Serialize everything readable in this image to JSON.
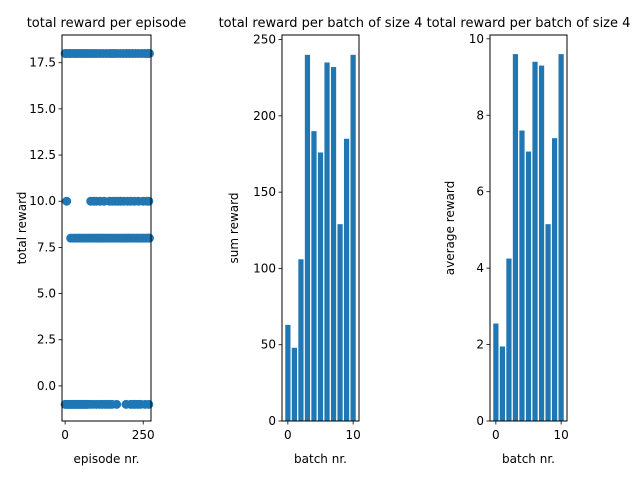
{
  "colors": {
    "series": "#1f77b4",
    "axis": "#000000",
    "background": "#ffffff"
  },
  "chart_data": [
    {
      "type": "scatter",
      "title": "total reward per episode",
      "xlabel": "episode nr.",
      "ylabel": "total reward",
      "xlim": [
        -10,
        275
      ],
      "ylim": [
        -1.9,
        19.0
      ],
      "xticks": [
        0,
        250
      ],
      "xtick_labels": [
        "0",
        "250"
      ],
      "yticks": [
        0.0,
        2.5,
        5.0,
        7.5,
        10.0,
        12.5,
        15.0,
        17.5
      ],
      "ytick_labels": [
        "0.0",
        "2.5",
        "5.0",
        "7.5",
        "10.0",
        "12.5",
        "15.0",
        "17.5"
      ],
      "grid": false,
      "points": [
        [
          0,
          18
        ],
        [
          5,
          18
        ],
        [
          12,
          18
        ],
        [
          18,
          18
        ],
        [
          26,
          18
        ],
        [
          33,
          18
        ],
        [
          40,
          18
        ],
        [
          48,
          18
        ],
        [
          55,
          18
        ],
        [
          62,
          18
        ],
        [
          70,
          18
        ],
        [
          78,
          18
        ],
        [
          86,
          18
        ],
        [
          94,
          18
        ],
        [
          102,
          18
        ],
        [
          112,
          18
        ],
        [
          122,
          18
        ],
        [
          132,
          18
        ],
        [
          142,
          18
        ],
        [
          150,
          18
        ],
        [
          158,
          18
        ],
        [
          166,
          18
        ],
        [
          176,
          18
        ],
        [
          186,
          18
        ],
        [
          196,
          18
        ],
        [
          206,
          18
        ],
        [
          216,
          18
        ],
        [
          226,
          18
        ],
        [
          236,
          18
        ],
        [
          246,
          18
        ],
        [
          256,
          18
        ],
        [
          264,
          18
        ],
        [
          270,
          18
        ],
        [
          5,
          10
        ],
        [
          82,
          10
        ],
        [
          92,
          10
        ],
        [
          100,
          10
        ],
        [
          112,
          10
        ],
        [
          125,
          10
        ],
        [
          142,
          10
        ],
        [
          152,
          10
        ],
        [
          162,
          10
        ],
        [
          170,
          10
        ],
        [
          178,
          10
        ],
        [
          188,
          10
        ],
        [
          200,
          10
        ],
        [
          210,
          10
        ],
        [
          222,
          10
        ],
        [
          235,
          10
        ],
        [
          250,
          10
        ],
        [
          262,
          10
        ],
        [
          268,
          10
        ],
        [
          18,
          8
        ],
        [
          28,
          8
        ],
        [
          36,
          8
        ],
        [
          44,
          8
        ],
        [
          52,
          8
        ],
        [
          60,
          8
        ],
        [
          68,
          8
        ],
        [
          76,
          8
        ],
        [
          84,
          8
        ],
        [
          92,
          8
        ],
        [
          100,
          8
        ],
        [
          108,
          8
        ],
        [
          116,
          8
        ],
        [
          124,
          8
        ],
        [
          132,
          8
        ],
        [
          140,
          8
        ],
        [
          148,
          8
        ],
        [
          156,
          8
        ],
        [
          164,
          8
        ],
        [
          172,
          8
        ],
        [
          180,
          8
        ],
        [
          188,
          8
        ],
        [
          196,
          8
        ],
        [
          204,
          8
        ],
        [
          212,
          8
        ],
        [
          220,
          8
        ],
        [
          228,
          8
        ],
        [
          236,
          8
        ],
        [
          244,
          8
        ],
        [
          252,
          8
        ],
        [
          260,
          8
        ],
        [
          266,
          8
        ],
        [
          270,
          8
        ],
        [
          0,
          -1
        ],
        [
          4,
          -1
        ],
        [
          8,
          -1
        ],
        [
          12,
          -1
        ],
        [
          16,
          -1
        ],
        [
          20,
          -1
        ],
        [
          24,
          -1
        ],
        [
          28,
          -1
        ],
        [
          32,
          -1
        ],
        [
          36,
          -1
        ],
        [
          40,
          -1
        ],
        [
          44,
          -1
        ],
        [
          48,
          -1
        ],
        [
          52,
          -1
        ],
        [
          56,
          -1
        ],
        [
          60,
          -1
        ],
        [
          64,
          -1
        ],
        [
          68,
          -1
        ],
        [
          72,
          -1
        ],
        [
          80,
          -1
        ],
        [
          90,
          -1
        ],
        [
          100,
          -1
        ],
        [
          110,
          -1
        ],
        [
          118,
          -1
        ],
        [
          126,
          -1
        ],
        [
          134,
          -1
        ],
        [
          142,
          -1
        ],
        [
          150,
          -1
        ],
        [
          165,
          -1
        ],
        [
          195,
          -1
        ],
        [
          210,
          -1
        ],
        [
          218,
          -1
        ],
        [
          226,
          -1
        ],
        [
          234,
          -1
        ],
        [
          242,
          -1
        ],
        [
          256,
          -1
        ],
        [
          268,
          -1
        ]
      ]
    },
    {
      "type": "bar",
      "title": "total reward per batch of size 4",
      "xlabel": "batch nr.",
      "ylabel": "sum reward",
      "xlim": [
        -0.9,
        10.9
      ],
      "ylim": [
        0,
        253
      ],
      "xticks": [
        0,
        10
      ],
      "xtick_labels": [
        "0",
        "10"
      ],
      "yticks": [
        0,
        50,
        100,
        150,
        200,
        250
      ],
      "ytick_labels": [
        "0",
        "50",
        "100",
        "150",
        "200",
        "250"
      ],
      "grid": false,
      "categories": [
        0,
        1,
        2,
        3,
        4,
        5,
        6,
        7,
        8,
        9,
        10
      ],
      "values": [
        63,
        48,
        106,
        240,
        190,
        176,
        235,
        232,
        129,
        185,
        240
      ]
    },
    {
      "type": "bar",
      "title": "total reward per batch of size 4",
      "xlabel": "batch nr.",
      "ylabel": "average reward",
      "xlim": [
        -0.9,
        10.9
      ],
      "ylim": [
        0,
        10.1
      ],
      "xticks": [
        0,
        10
      ],
      "xtick_labels": [
        "0",
        "10"
      ],
      "yticks": [
        0,
        2,
        4,
        6,
        8,
        10
      ],
      "ytick_labels": [
        "0",
        "2",
        "4",
        "6",
        "8",
        "10"
      ],
      "grid": false,
      "categories": [
        0,
        1,
        2,
        3,
        4,
        5,
        6,
        7,
        8,
        9,
        10
      ],
      "values": [
        2.55,
        1.95,
        4.25,
        9.6,
        7.6,
        7.05,
        9.4,
        9.3,
        5.15,
        7.4,
        9.6
      ]
    }
  ]
}
